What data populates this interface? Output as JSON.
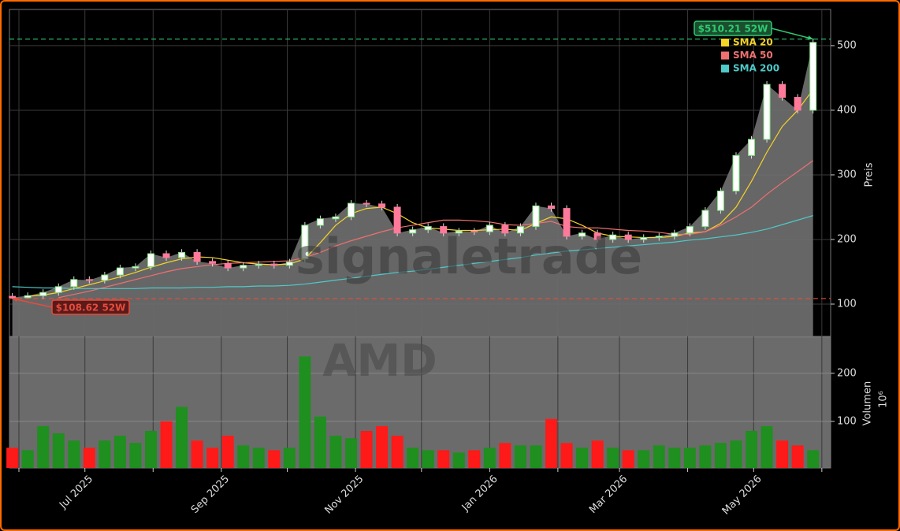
{
  "chart_data": {
    "type": "candlestick",
    "watermark": "signaletrade",
    "symbol": "AMD",
    "ylabel": "Preis",
    "x": [
      -3,
      4,
      11,
      18,
      25,
      32,
      39,
      46,
      53,
      60,
      67,
      74,
      81,
      88,
      95,
      102,
      109,
      116,
      123,
      130,
      137,
      144,
      151,
      158,
      165,
      172,
      179,
      186,
      193,
      200,
      207,
      214,
      221,
      228,
      235,
      242,
      249,
      256,
      263,
      270,
      277,
      284,
      291,
      298,
      305,
      312,
      319,
      326,
      333,
      340,
      347,
      354,
      361
    ],
    "xlim": [
      -4.3,
      369
    ],
    "xticks": [
      {
        "value": 30,
        "label": "Jul 2025"
      },
      {
        "value": 92,
        "label": "Sep 2025"
      },
      {
        "value": 153,
        "label": "Nov 2025"
      },
      {
        "value": 214,
        "label": "Jan 2026"
      },
      {
        "value": 273,
        "label": "Mar 2026"
      },
      {
        "value": 334,
        "label": "May 2026"
      }
    ],
    "xminor": [
      0,
      61,
      122,
      183,
      245,
      304,
      365
    ],
    "open": [
      112,
      110,
      113,
      118,
      127,
      138,
      137,
      145,
      156,
      158,
      178,
      172,
      180,
      166,
      163,
      156,
      160,
      162,
      160,
      170,
      222,
      232,
      235,
      256,
      255,
      250,
      210,
      215,
      220,
      210,
      213,
      212,
      222,
      210,
      220,
      252,
      248,
      205,
      210,
      200,
      207,
      200,
      203,
      205,
      210,
      220,
      245,
      275,
      330,
      355,
      440,
      420,
      400
    ],
    "high": [
      117,
      118,
      123,
      132,
      143,
      143,
      150,
      161,
      163,
      183,
      183,
      185,
      185,
      171,
      168,
      165,
      167,
      167,
      170,
      227,
      237,
      240,
      261,
      261,
      260,
      255,
      220,
      225,
      225,
      218,
      218,
      227,
      227,
      225,
      257,
      257,
      253,
      215,
      215,
      212,
      212,
      208,
      210,
      215,
      225,
      250,
      280,
      335,
      360,
      445,
      445,
      425,
      510.21
    ],
    "low": [
      108.62,
      109,
      108,
      113,
      122,
      132,
      132,
      140,
      151,
      153,
      167,
      167,
      161,
      158,
      151,
      151,
      155,
      155,
      155,
      165,
      217,
      227,
      230,
      250,
      245,
      205,
      205,
      210,
      205,
      205,
      207,
      207,
      205,
      205,
      215,
      243,
      200,
      200,
      195,
      195,
      195,
      195,
      198,
      200,
      205,
      215,
      240,
      270,
      325,
      350,
      415,
      395,
      395
    ],
    "close": [
      110,
      113,
      118,
      127,
      138,
      137,
      145,
      156,
      158,
      178,
      172,
      180,
      166,
      163,
      156,
      160,
      162,
      160,
      165,
      222,
      232,
      235,
      256,
      255,
      250,
      210,
      215,
      220,
      210,
      213,
      212,
      222,
      210,
      220,
      252,
      248,
      205,
      210,
      200,
      207,
      200,
      203,
      205,
      210,
      220,
      245,
      275,
      330,
      355,
      440,
      420,
      400,
      505
    ],
    "series": [
      {
        "name": "SMA 20",
        "color": "#f5d327",
        "values": [
          null,
          112,
          114,
          118,
          124,
          130,
          136,
          142,
          149,
          157,
          164,
          170,
          173,
          172,
          168,
          164,
          162,
          161,
          162,
          170,
          195,
          222,
          240,
          248,
          250,
          240,
          226,
          218,
          216,
          214,
          214,
          215,
          216,
          214,
          225,
          235,
          232,
          222,
          210,
          205,
          204,
          203,
          203,
          205,
          210,
          212,
          225,
          250,
          290,
          335,
          375,
          400,
          432
        ]
      },
      {
        "name": "SMA 50",
        "color": "#f07070",
        "values": [
          null,
          null,
          null,
          110,
          115,
          120,
          126,
          132,
          138,
          144,
          150,
          155,
          158,
          161,
          163,
          164,
          165,
          166,
          167,
          172,
          180,
          190,
          198,
          205,
          212,
          218,
          222,
          226,
          230,
          230,
          229,
          227,
          223,
          222,
          225,
          228,
          220,
          218,
          218,
          216,
          214,
          213,
          211,
          208,
          208,
          212,
          222,
          235,
          250,
          270,
          288,
          305,
          322
        ]
      },
      {
        "name": "SMA 200",
        "color": "#4fc9c9",
        "values": [
          127,
          126,
          125,
          125,
          124,
          124,
          124,
          124,
          124,
          125,
          125,
          125,
          126,
          126,
          127,
          127,
          128,
          128,
          129,
          131,
          134,
          137,
          140,
          143,
          146,
          149,
          151,
          154,
          157,
          160,
          163,
          166,
          169,
          172,
          176,
          179,
          182,
          184,
          186,
          188,
          190,
          192,
          194,
          196,
          199,
          201,
          204,
          207,
          211,
          216,
          223,
          230,
          237
        ]
      }
    ],
    "ylim": [
      50,
      556
    ],
    "yticks": [
      100,
      200,
      300,
      400,
      500
    ],
    "annotations": [
      {
        "value": 510.21,
        "label": "$510.21 52W",
        "color": "#2ecc71"
      },
      {
        "value": 108.62,
        "label": "$108.62 52W",
        "color": "#e74c3c"
      }
    ],
    "colors": {
      "up": "#1f8f1f",
      "down": "#ff1a1a",
      "area": "#6b6b6b"
    },
    "grid": true,
    "legend": "upper right",
    "volume": {
      "ylabel": "Volumen",
      "unit": "10⁶",
      "values": [
        45,
        40,
        90,
        75,
        60,
        45,
        60,
        70,
        55,
        80,
        100,
        130,
        60,
        45,
        70,
        50,
        45,
        40,
        45,
        235,
        110,
        70,
        65,
        80,
        90,
        70,
        45,
        40,
        40,
        35,
        40,
        45,
        55,
        50,
        50,
        105,
        55,
        45,
        60,
        45,
        40,
        40,
        50,
        45,
        45,
        50,
        55,
        60,
        80,
        90,
        60,
        50,
        40
      ],
      "ylim": [
        3,
        275
      ],
      "yticks": [
        100,
        200
      ]
    }
  }
}
